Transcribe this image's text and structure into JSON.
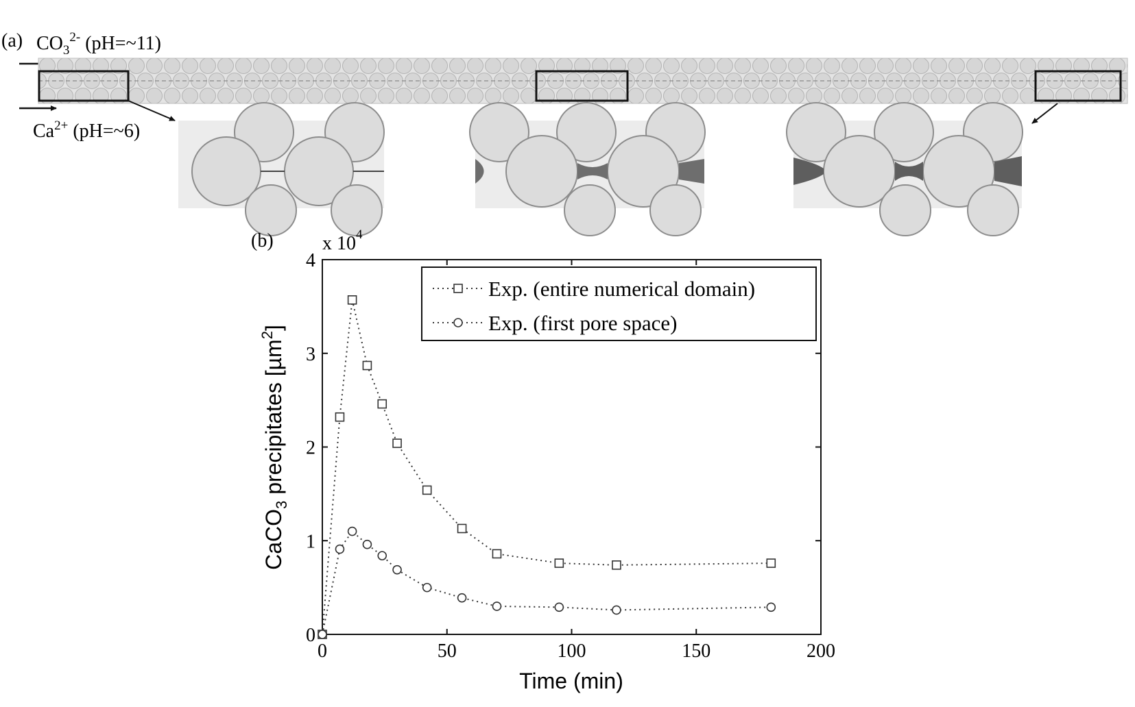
{
  "panel_a": {
    "label": "(a)",
    "inlet_top": {
      "species": "CO",
      "subscript": "3",
      "superscript": "2-",
      "ph_text": " (pH=~11)"
    },
    "inlet_bottom": {
      "species": "Ca",
      "superscript": "2+",
      "ph_text": " (pH=~6)"
    }
  },
  "panel_b": {
    "label": "(b)"
  },
  "chart_data": {
    "type": "line",
    "multiplier_text": "x 10",
    "multiplier_exp": "4",
    "xlabel": "Time (min)",
    "ylabel": {
      "main": "CaCO",
      "subscript": "3",
      "rest": " precipitates [µm",
      "superscript": "2",
      "close": "]"
    },
    "xlim": [
      0,
      200
    ],
    "ylim": [
      0,
      40000
    ],
    "x_ticks": [
      0,
      50,
      100,
      150,
      200
    ],
    "y_ticks": [
      0,
      10000,
      20000,
      30000,
      40000
    ],
    "x_tick_labels": [
      "0",
      "50",
      "100",
      "150",
      "200"
    ],
    "y_tick_labels": [
      "0",
      "1",
      "2",
      "3",
      "4"
    ],
    "grid": false,
    "legend_position": "top-right",
    "series": [
      {
        "name": "Exp. (entire numerical domain)",
        "marker": "square",
        "line_style": "dotted",
        "color": "#333333",
        "x": [
          0,
          7,
          12,
          18,
          24,
          30,
          42,
          56,
          70,
          95,
          118,
          180
        ],
        "y": [
          0,
          23200,
          35700,
          28700,
          24600,
          20400,
          15400,
          11300,
          8600,
          7600,
          7400,
          7600
        ]
      },
      {
        "name": "Exp. (first pore space)",
        "marker": "circle",
        "line_style": "dotted",
        "color": "#333333",
        "x": [
          0,
          7,
          12,
          18,
          24,
          30,
          42,
          56,
          70,
          95,
          118,
          180
        ],
        "y": [
          0,
          9100,
          11000,
          9600,
          8400,
          6900,
          5000,
          3900,
          3000,
          2900,
          2600,
          2900
        ]
      }
    ]
  }
}
